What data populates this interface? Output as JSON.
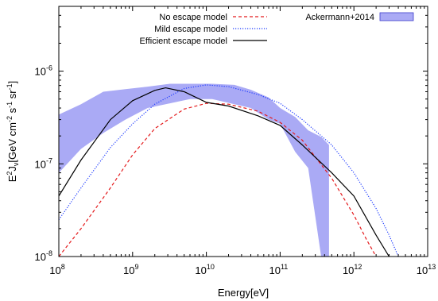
{
  "chart_data": {
    "type": "line",
    "xlabel": "Energy[eV]",
    "ylabel": {
      "main": "E",
      "sup1": "2",
      "mid": "J",
      "sub": "ν",
      "tail": "[GeV cm",
      "sup2": "-2",
      "s": " s",
      "sup3": "-1",
      "sr": " sr",
      "sup4": "-1",
      "end": "]"
    },
    "xscale": "log",
    "yscale": "log",
    "xlim": [
      100000000.0,
      10000000000000.0
    ],
    "ylim": [
      1e-08,
      5e-06
    ],
    "grid": false,
    "legend_position": "top",
    "x_ticks": [
      {
        "base": "10",
        "exp": "8",
        "value": 100000000.0
      },
      {
        "base": "10",
        "exp": "9",
        "value": 1000000000.0
      },
      {
        "base": "10",
        "exp": "10",
        "value": 10000000000.0
      },
      {
        "base": "10",
        "exp": "11",
        "value": 100000000000.0
      },
      {
        "base": "10",
        "exp": "12",
        "value": 1000000000000.0
      },
      {
        "base": "10",
        "exp": "13",
        "value": 10000000000000.0
      }
    ],
    "y_ticks": [
      {
        "base": "10",
        "exp": "-8",
        "value": 1e-08
      },
      {
        "base": "10",
        "exp": "-7",
        "value": 1e-07
      },
      {
        "base": "10",
        "exp": "-6",
        "value": 1e-06
      }
    ],
    "band": {
      "name": "Ackermann+2014",
      "color": "#aaaaf5",
      "edge_color": "#3c3ccc",
      "upper": [
        [
          100000000.0,
          3.4e-07
        ],
        [
          200000000.0,
          4.4e-07
        ],
        [
          400000000.0,
          6e-07
        ],
        [
          800000000.0,
          6.4e-07
        ],
        [
          1600000000.0,
          6.8e-07
        ],
        [
          3200000000.0,
          7.3e-07
        ],
        [
          6000000000.0,
          7.3e-07
        ],
        [
          12000000000.0,
          7.3e-07
        ],
        [
          24000000000.0,
          7.1e-07
        ],
        [
          40000000000.0,
          6.3e-07
        ],
        [
          70000000000.0,
          5.2e-07
        ],
        [
          100000000000.0,
          4e-07
        ],
        [
          160000000000.0,
          3.2e-07
        ],
        [
          240000000000.0,
          2.3e-07
        ],
        [
          360000000000.0,
          1.95e-07
        ],
        [
          460000000000.0,
          1.6e-07
        ]
      ],
      "lower": [
        [
          100000000.0,
          8e-08
        ],
        [
          200000000.0,
          1.45e-07
        ],
        [
          400000000.0,
          2.15e-07
        ],
        [
          800000000.0,
          3e-07
        ],
        [
          1600000000.0,
          4e-07
        ],
        [
          3200000000.0,
          4.5e-07
        ],
        [
          6000000000.0,
          5e-07
        ],
        [
          12000000000.0,
          5e-07
        ],
        [
          24000000000.0,
          4.4e-07
        ],
        [
          40000000000.0,
          4e-07
        ],
        [
          70000000000.0,
          3e-07
        ],
        [
          100000000000.0,
          2.7e-07
        ],
        [
          160000000000.0,
          1.35e-07
        ],
        [
          240000000000.0,
          9e-08
        ],
        [
          360000000000.0,
          1e-08
        ],
        [
          460000000000.0,
          1e-08
        ]
      ]
    },
    "series": [
      {
        "name": "No escape model",
        "color": "#e41a1c",
        "style": "dashed",
        "points": [
          [
            100000000.0,
            1e-08
          ],
          [
            200000000.0,
            2e-08
          ],
          [
            500000000.0,
            5.5e-08
          ],
          [
            1000000000.0,
            1.25e-07
          ],
          [
            2000000000.0,
            2.4e-07
          ],
          [
            5000000000.0,
            3.9e-07
          ],
          [
            10000000000.0,
            4.5e-07
          ],
          [
            20000000000.0,
            4.4e-07
          ],
          [
            50000000000.0,
            3.7e-07
          ],
          [
            100000000000.0,
            2.8e-07
          ],
          [
            200000000000.0,
            1.8e-07
          ],
          [
            500000000000.0,
            7e-08
          ],
          [
            1000000000000.0,
            2.8e-08
          ],
          [
            1500000000000.0,
            1.5e-08
          ],
          [
            2000000000000.0,
            1e-08
          ]
        ]
      },
      {
        "name": "Mild escape model",
        "color": "#1f3cff",
        "style": "dotted",
        "points": [
          [
            100000000.0,
            2.5e-08
          ],
          [
            200000000.0,
            5.5e-08
          ],
          [
            500000000.0,
            1.5e-07
          ],
          [
            1000000000.0,
            2.7e-07
          ],
          [
            2000000000.0,
            4.4e-07
          ],
          [
            5000000000.0,
            6.5e-07
          ],
          [
            10000000000.0,
            7.1e-07
          ],
          [
            20000000000.0,
            6.8e-07
          ],
          [
            50000000000.0,
            5.6e-07
          ],
          [
            100000000000.0,
            4.5e-07
          ],
          [
            200000000000.0,
            3e-07
          ],
          [
            500000000000.0,
            1.6e-07
          ],
          [
            1000000000000.0,
            8e-08
          ],
          [
            2000000000000.0,
            3.3e-08
          ],
          [
            3000000000000.0,
            1.7e-08
          ],
          [
            4000000000000.0,
            1e-08
          ]
        ]
      },
      {
        "name": "Efficient escape model",
        "color": "#000000",
        "style": "solid",
        "points": [
          [
            100000000.0,
            4.5e-08
          ],
          [
            200000000.0,
            1.1e-07
          ],
          [
            500000000.0,
            3e-07
          ],
          [
            1000000000.0,
            4.8e-07
          ],
          [
            2000000000.0,
            6.2e-07
          ],
          [
            2800000000.0,
            6.6e-07
          ],
          [
            5000000000.0,
            6e-07
          ],
          [
            10000000000.0,
            4.6e-07
          ],
          [
            20000000000.0,
            4.2e-07
          ],
          [
            50000000000.0,
            3.3e-07
          ],
          [
            100000000000.0,
            2.6e-07
          ],
          [
            200000000000.0,
            1.6e-07
          ],
          [
            500000000000.0,
            8e-08
          ],
          [
            1000000000000.0,
            4.5e-08
          ],
          [
            2000000000000.0,
            1.7e-08
          ],
          [
            3000000000000.0,
            1e-08
          ]
        ]
      }
    ]
  }
}
